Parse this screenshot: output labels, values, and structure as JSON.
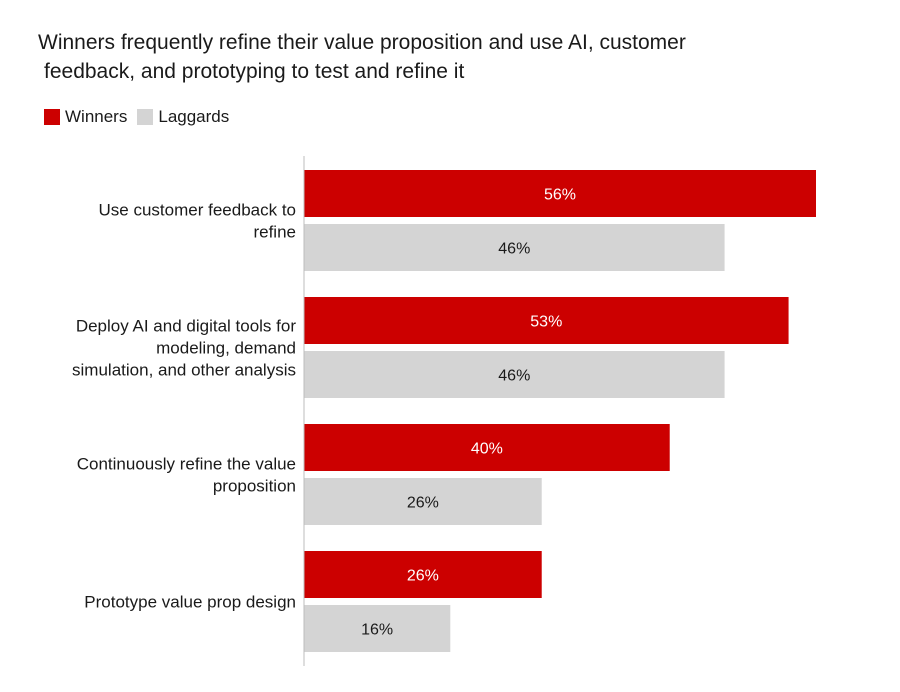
{
  "title_lines": [
    "Winners frequently refine their value proposition and use AI, customer",
    "feedback, and prototyping to test and refine it"
  ],
  "legend": [
    {
      "label": "Winners",
      "color": "#cc0000"
    },
    {
      "label": "Laggards",
      "color": "#d4d4d4"
    }
  ],
  "chart_data": {
    "type": "bar",
    "orientation": "horizontal",
    "title": "Winners frequently refine their value proposition and use AI, customer feedback, and prototyping to test and refine it",
    "categories": [
      [
        "Use customer feedback to",
        "refine"
      ],
      [
        "Deploy AI and digital tools for",
        "modeling, demand",
        "simulation, and other analysis"
      ],
      [
        "Continuously refine the value",
        "proposition"
      ],
      [
        "Prototype value prop design"
      ]
    ],
    "series": [
      {
        "name": "Winners",
        "color": "#cc0000",
        "label_color": "#ffffff",
        "values": [
          56,
          53,
          40,
          26
        ]
      },
      {
        "name": "Laggards",
        "color": "#d4d4d4",
        "label_color": "#1a1a1a",
        "values": [
          46,
          46,
          26,
          16
        ]
      }
    ],
    "value_suffix": "%",
    "xlim": [
      0,
      56
    ],
    "legend_position": "top-left",
    "grid": false
  }
}
